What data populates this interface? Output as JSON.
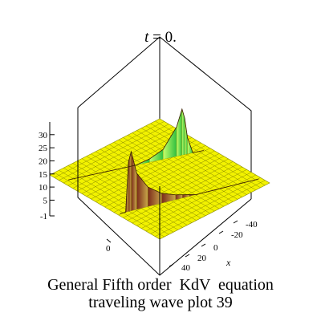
{
  "chart_data": {
    "type": "surface",
    "title": {
      "var": "t",
      "rest": " = 0."
    },
    "xlabel": "x",
    "ylabel": "",
    "zlabel": "",
    "x_ticks": [
      "-40",
      "-20",
      "0",
      "20",
      "40"
    ],
    "y_ticks": [
      "0"
    ],
    "z_ticks": [
      "-1",
      "5",
      "10",
      "15",
      "20",
      "25",
      "30"
    ],
    "xlim": [
      -50,
      50
    ],
    "zlim": [
      -1,
      33
    ],
    "baseline_level": 13,
    "colors": {
      "surface": "#f2f200",
      "mesh": "#8a8a00",
      "peak_dark": "#7a2a1a",
      "peak_light": "#2fbf3f",
      "box": "#000000"
    },
    "series": [
      {
        "x": [
          -50,
          -46,
          -44,
          -42,
          -38,
          -30,
          -20,
          -10,
          -5,
          0,
          5,
          10,
          18,
          25,
          30,
          40,
          50
        ],
        "z": [
          13,
          13,
          28,
          31,
          24,
          19,
          16,
          14.5,
          14,
          13.5,
          13,
          13,
          13,
          13,
          13,
          13,
          13
        ]
      },
      {
        "x": [
          -50,
          -30,
          -10,
          0,
          10,
          20,
          30,
          34,
          36,
          38,
          42,
          50
        ],
        "z": [
          13,
          13,
          13,
          13,
          14,
          16,
          22,
          27,
          24,
          18,
          13,
          13
        ]
      }
    ]
  },
  "caption": {
    "line1": "General Fifth order  KdV  equation",
    "line2": "traveling wave plot 39"
  }
}
